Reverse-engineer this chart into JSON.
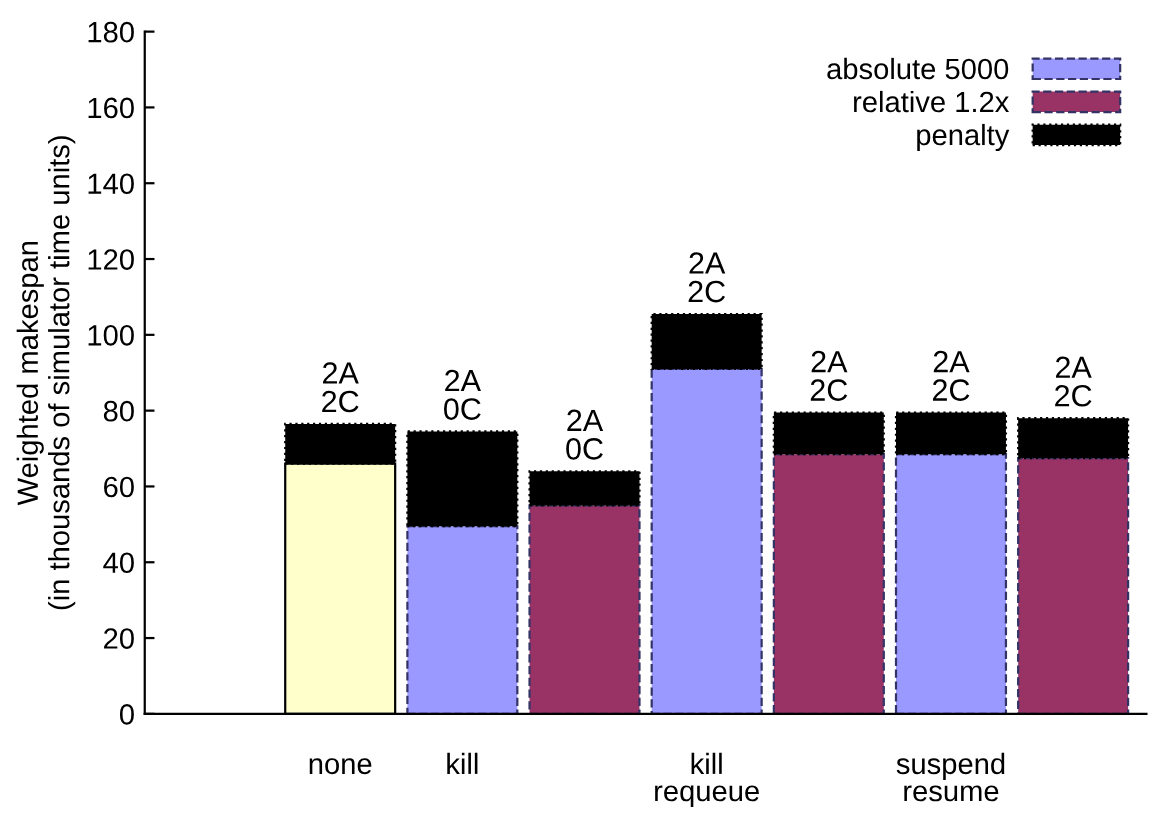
{
  "chart_data": {
    "type": "bar",
    "stacked": true,
    "ylabel": "Weighted makespan\n(in thousands of simulator time units)",
    "categories": [
      "none",
      "kill",
      null,
      "kill\nrequeue",
      null,
      "suspend\nresume",
      null
    ],
    "series": [
      {
        "color": "#ffffcc",
        "values": [
          66,
          null,
          null,
          null,
          null,
          null,
          null
        ],
        "line_style": "solid"
      },
      {
        "name": "absolute 5000",
        "color": "#9999ff",
        "values": [
          null,
          49.5,
          null,
          91,
          null,
          68.5,
          null
        ],
        "line_style": "dashed"
      },
      {
        "name": "relative 1.2x",
        "color": "#993366",
        "values": [
          null,
          null,
          55,
          null,
          68.5,
          null,
          67.5
        ],
        "line_style": "dashed"
      },
      {
        "name": "penalty",
        "color": "#000000",
        "values": [
          10.5,
          25,
          9,
          14.5,
          11,
          11,
          10.5
        ],
        "line_style": "dotted"
      }
    ],
    "annotations": [
      "2A\n2C",
      "2A\n0C",
      "2A\n0C",
      "2A\n2C",
      "2A\n2C",
      "2A\n2C",
      "2A\n2C"
    ],
    "ylim": [
      0,
      180
    ],
    "yticks": [
      0,
      20,
      40,
      60,
      80,
      100,
      120,
      140,
      160,
      180
    ],
    "legend": "top right",
    "grid": false
  }
}
